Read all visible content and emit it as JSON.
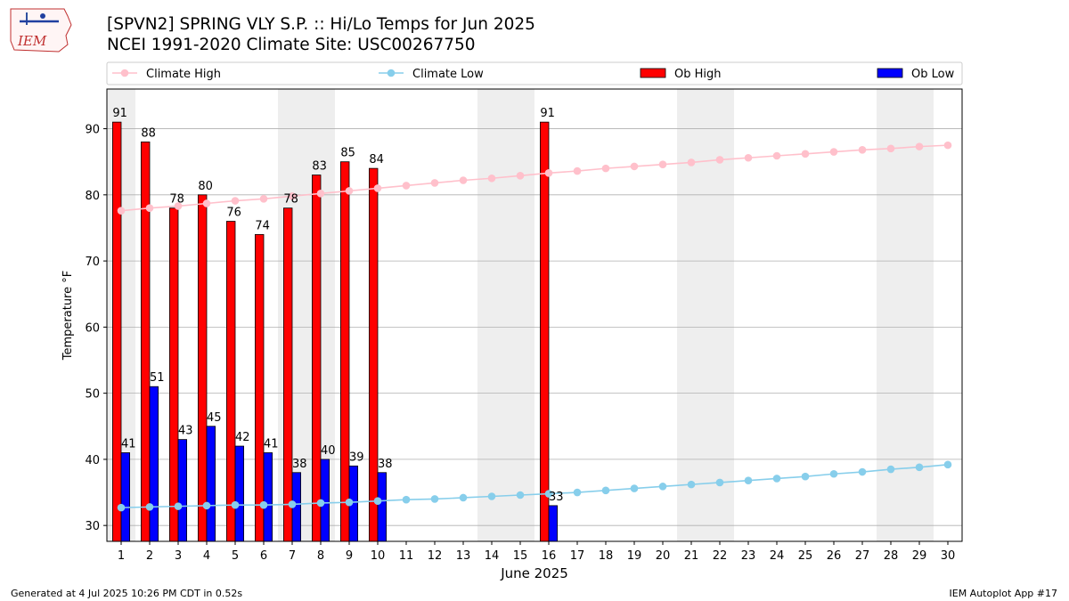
{
  "header": {
    "title_line1": "[SPVN2] SPRING VLY S.P. :: Hi/Lo Temps for Jun 2025",
    "title_line2": "NCEI 1991-2020 Climate Site: USC00267750"
  },
  "logo": {
    "text": "IEM",
    "icon": "iem-iowa-logo"
  },
  "footer": {
    "generated": "Generated at 4 Jul 2025 10:26 PM CDT in 0.52s",
    "app": "IEM Autoplot App #17"
  },
  "colors": {
    "climate_high": "#ffc0cb",
    "climate_low": "#87ceeb",
    "ob_high": "#ff0000",
    "ob_low": "#0000ff",
    "weekend_band": "#eeeeee",
    "grid": "#b0b0b0"
  },
  "chart_data": {
    "type": "bar",
    "xlabel": "June 2025",
    "ylabel": "Temperature °F",
    "xlim": [
      0.5,
      30.5
    ],
    "ylim": [
      27.6,
      96
    ],
    "yticks": [
      30,
      40,
      50,
      60,
      70,
      80,
      90
    ],
    "grid": "horizontal",
    "legend_position": "top",
    "x": [
      1,
      2,
      3,
      4,
      5,
      6,
      7,
      8,
      9,
      10,
      11,
      12,
      13,
      14,
      15,
      16,
      17,
      18,
      19,
      20,
      21,
      22,
      23,
      24,
      25,
      26,
      27,
      28,
      29,
      30
    ],
    "weekend_days": [
      1,
      7,
      8,
      14,
      15,
      21,
      22,
      28,
      29
    ],
    "series": [
      {
        "name": "Climate High",
        "type": "line",
        "values": [
          77.6,
          78.0,
          78.3,
          78.7,
          79.1,
          79.4,
          79.8,
          80.2,
          80.6,
          81.0,
          81.4,
          81.8,
          82.2,
          82.5,
          82.9,
          83.3,
          83.6,
          84.0,
          84.3,
          84.6,
          84.9,
          85.3,
          85.6,
          85.9,
          86.2,
          86.5,
          86.8,
          87.0,
          87.3,
          87.5
        ]
      },
      {
        "name": "Climate Low",
        "type": "line",
        "values": [
          32.7,
          32.8,
          32.9,
          33.0,
          33.1,
          33.1,
          33.2,
          33.4,
          33.5,
          33.7,
          33.9,
          34.0,
          34.2,
          34.4,
          34.6,
          34.8,
          35.0,
          35.3,
          35.6,
          35.9,
          36.2,
          36.5,
          36.8,
          37.1,
          37.4,
          37.8,
          38.1,
          38.5,
          38.8,
          39.2
        ]
      },
      {
        "name": "Ob High",
        "type": "bar",
        "values": [
          91,
          88,
          78,
          80,
          76,
          74,
          78,
          83,
          85,
          84,
          null,
          null,
          null,
          null,
          null,
          91,
          null,
          null,
          null,
          null,
          null,
          null,
          null,
          null,
          null,
          null,
          null,
          null,
          null,
          null
        ]
      },
      {
        "name": "Ob Low",
        "type": "bar",
        "values": [
          41,
          51,
          43,
          45,
          42,
          41,
          38,
          40,
          39,
          38,
          null,
          null,
          null,
          null,
          null,
          33,
          null,
          null,
          null,
          null,
          null,
          null,
          null,
          null,
          null,
          null,
          null,
          null,
          null,
          null
        ]
      }
    ]
  }
}
